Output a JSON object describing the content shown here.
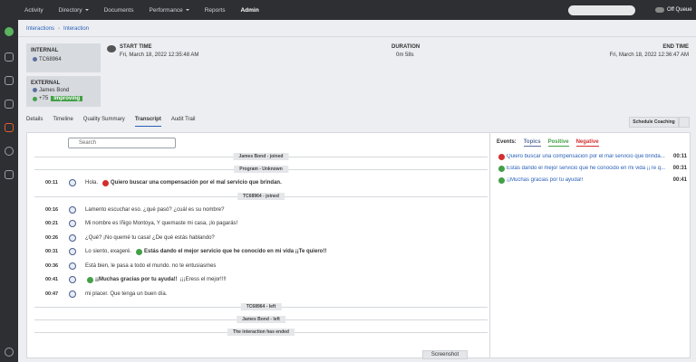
{
  "nav": {
    "items": [
      "Activity",
      "Directory",
      "Documents",
      "Performance",
      "Reports",
      "Admin"
    ],
    "active": 5,
    "dropdowns": [
      1,
      3
    ],
    "status": "Off Queue"
  },
  "breadcrumb": [
    "Interactions",
    "Interaction"
  ],
  "internal": {
    "label": "INTERNAL",
    "id": "TC68964"
  },
  "external": {
    "label": "EXTERNAL",
    "name": "James Bond",
    "score": "+75",
    "badge": "Improving"
  },
  "start_time": {
    "label": "START TIME",
    "value": "Fri, March 18, 2022 12:35:48 AM"
  },
  "duration": {
    "label": "DURATION",
    "value": "0m 58s"
  },
  "end_time": {
    "label": "END TIME",
    "value": "Fri, March 18, 2022 12:36:47 AM"
  },
  "tabs": {
    "items": [
      "Details",
      "Timeline",
      "Quality Summary",
      "Transcript",
      "Audit Trail"
    ],
    "active": 3
  },
  "coaching_button": "Schedule Coaching",
  "search_placeholder": "Search",
  "transcript": [
    {
      "system": "James Bond - joined"
    },
    {
      "system": "Program - Unknown"
    },
    {
      "time": "00:11",
      "segments": [
        {
          "text": "Hola."
        },
        {
          "text": "Quiero buscar una compensación por el mal servicio que brindan.",
          "tone": "negative"
        }
      ]
    },
    {
      "system": "TC68964 - joined"
    },
    {
      "time": "00:16",
      "segments": [
        {
          "text": "Lamento escuchar eso. ¿qué pasó? ¿cuál es su nombre?"
        }
      ]
    },
    {
      "time": "00:21",
      "segments": [
        {
          "text": "Mi nombre es Iñigo Montoya, Y quemaste mi casa, ¡lo pagarás!"
        }
      ]
    },
    {
      "time": "00:26",
      "segments": [
        {
          "text": "¿Qué? ¡No quemé tu casa! ¿De qué estás hablando?"
        }
      ]
    },
    {
      "time": "00:31",
      "segments": [
        {
          "text": "Lo siento, exageré."
        },
        {
          "text": "Estás dando el mejor servicio que he conocido en mi vida ¡¡Te quiero!!",
          "tone": "positive"
        }
      ]
    },
    {
      "time": "00:36",
      "segments": [
        {
          "text": "Está bien, le pasa a todo el mundo. no te entusiasmes"
        }
      ]
    },
    {
      "time": "00:41",
      "segments": [
        {
          "text": "¡¡Muchas gracias por tu ayuda!!",
          "tone": "positive"
        },
        {
          "text": "¡¡¡Eress el mejor!!!!"
        }
      ]
    },
    {
      "time": "00:47",
      "segments": [
        {
          "text": "mi placer. Que tenga un buen día."
        }
      ]
    },
    {
      "system": "TC68964 - left"
    },
    {
      "system": "James Bond - left"
    },
    {
      "system": "The interaction has ended"
    }
  ],
  "events": {
    "label": "Events:",
    "filters": [
      {
        "text": "Topics",
        "color": "#5b6f9e"
      },
      {
        "text": "Positive",
        "color": "#43a047"
      },
      {
        "text": "Negative",
        "color": "#d32f2f"
      }
    ],
    "items": [
      {
        "text": "Quiero buscar una compensación por el mal servicio que brinda...",
        "time": "00:11",
        "tone": "negative"
      },
      {
        "text": "Estás dando el mejor servicio que he conocido en mi vida ¡¡Te q...",
        "time": "00:31",
        "tone": "positive"
      },
      {
        "text": "¡¡Muchas gracias por tu ayuda!!",
        "time": "00:41",
        "tone": "positive"
      }
    ]
  },
  "screenshot_button": "Screenshot"
}
